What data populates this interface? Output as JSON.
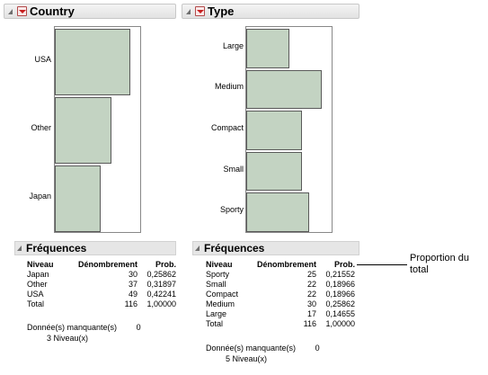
{
  "country": {
    "title": "Country",
    "levels": [
      "USA",
      "Other",
      "Japan"
    ],
    "counts": [
      49,
      37,
      30
    ]
  },
  "type": {
    "title": "Type",
    "levels": [
      "Large",
      "Medium",
      "Compact",
      "Small",
      "Sporty"
    ],
    "counts": [
      17,
      30,
      22,
      22,
      25
    ]
  },
  "freq_country": {
    "title": "Fréquences",
    "headers": [
      "Niveau",
      "Dénombrement",
      "Prob."
    ],
    "rows": [
      [
        "Japan",
        "30",
        "0,25862"
      ],
      [
        "Other",
        "37",
        "0,31897"
      ],
      [
        "USA",
        "49",
        "0,42241"
      ],
      [
        "Total",
        "116",
        "1,00000"
      ]
    ],
    "missing_label": "Donnée(s) manquante(s)",
    "missing_value": "0",
    "levels_note": "3  Niveau(x)"
  },
  "freq_type": {
    "title": "Fréquences",
    "headers": [
      "Niveau",
      "Dénombrement",
      "Prob."
    ],
    "rows": [
      [
        "Sporty",
        "25",
        "0,21552"
      ],
      [
        "Small",
        "22",
        "0,18966"
      ],
      [
        "Compact",
        "22",
        "0,18966"
      ],
      [
        "Medium",
        "30",
        "0,25862"
      ],
      [
        "Large",
        "17",
        "0,14655"
      ],
      [
        "Total",
        "116",
        "1,00000"
      ]
    ],
    "missing_label": "Donnée(s) manquante(s)",
    "missing_value": "0",
    "levels_note": "5  Niveau(x)"
  },
  "callout": {
    "text": "Proportion du total"
  },
  "colors": {
    "bar_fill": "#c3d3c2",
    "bar_stroke": "#5a5a5a"
  }
}
